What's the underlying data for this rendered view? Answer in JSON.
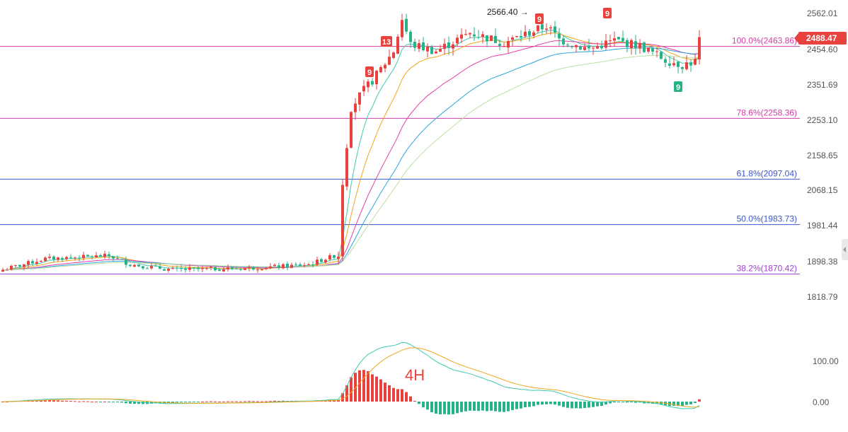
{
  "chart_data": [
    {
      "type": "candlestick",
      "timeframe_label": "4H",
      "y_ticks": [
        2562.01,
        2454.6,
        2351.69,
        2253.1,
        2158.65,
        2068.15,
        1981.44,
        1898.38,
        1818.79
      ],
      "last_price": "2488.47",
      "fib_levels": [
        {
          "label": "100.0%(2463.86)",
          "value": 2463.86,
          "color": "#d63ca5"
        },
        {
          "label": "78.6%(2258.36)",
          "value": 2258.36,
          "color": "#d63ca5"
        },
        {
          "label": "61.8%(2097.04)",
          "value": 2097.04,
          "color": "#3d55c7"
        },
        {
          "label": "50.0%(1983.73)",
          "value": 1983.73,
          "color": "#3d55c7"
        },
        {
          "label": "38.2%(1870.42)",
          "value": 1870.42,
          "color": "#9c3fd0"
        }
      ],
      "annotations": [
        {
          "text": "2566.40 →",
          "price": 2566.4
        },
        {
          "text": "9",
          "kind": "sell-count"
        },
        {
          "text": "9",
          "kind": "sell-count"
        },
        {
          "text": "13",
          "kind": "sell-count"
        },
        {
          "text": "9",
          "kind": "sell-count"
        },
        {
          "text": "9",
          "kind": "buy-count"
        }
      ],
      "moving_average_colors": [
        "#3ec9b0",
        "#f2a51a",
        "#e23fa6",
        "#2aa6de",
        "#b9e0a0"
      ],
      "up_color": "#e8423f",
      "down_color": "#26b38a"
    },
    {
      "type": "macd",
      "y_ticks": [
        100.0,
        0.0
      ],
      "line_colors": [
        "#3ec9b0",
        "#f2a51a"
      ]
    }
  ]
}
